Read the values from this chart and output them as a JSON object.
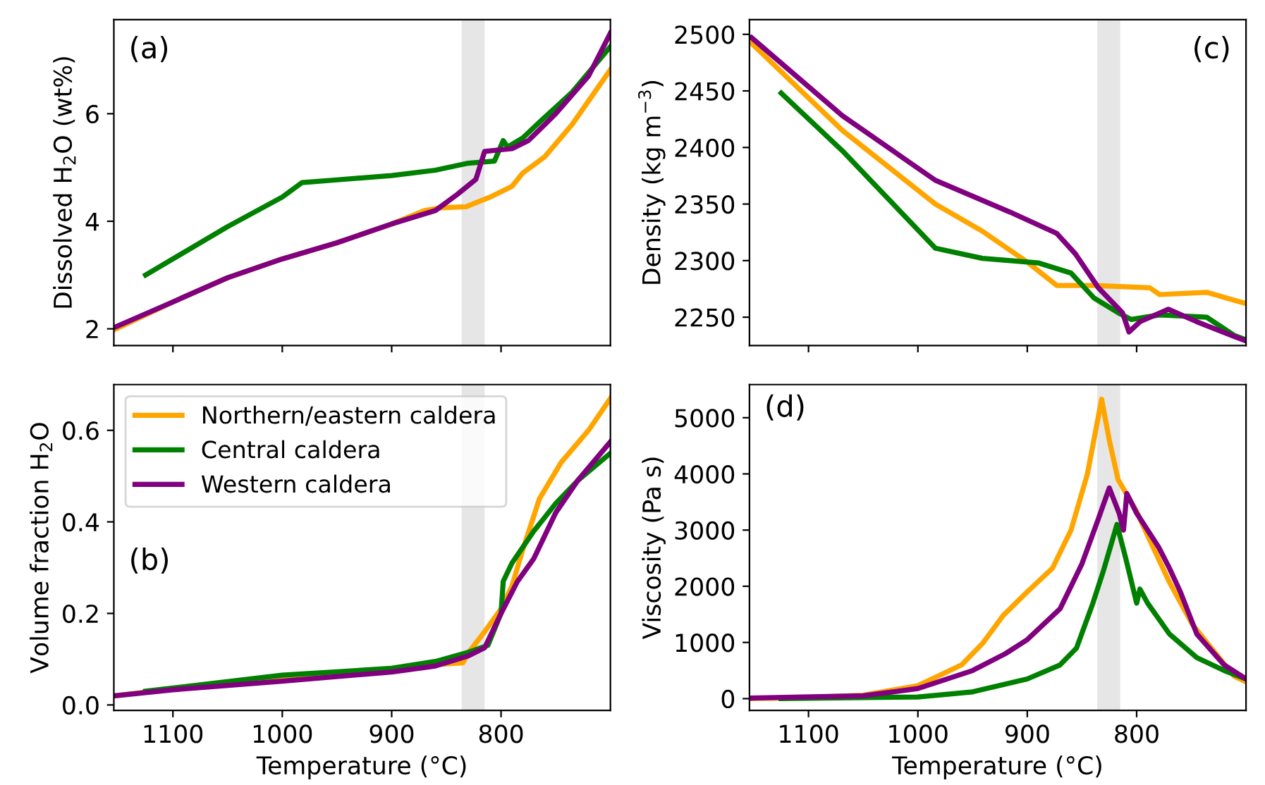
{
  "chart_data": [
    {
      "type": "line",
      "ylabel": "Dissolved H$_{2}$O (wt%)",
      "annotations": [
        "(a)"
      ],
      "xlim": [
        1154,
        700
      ],
      "xticks": [
        1100,
        1000,
        900,
        800
      ],
      "ylim": [
        1.69,
        7.75
      ],
      "yticks": [
        2,
        4,
        6
      ],
      "tick_labels": "y",
      "grid": false,
      "legend": false,
      "bands": [
        {
          "axis": "x",
          "from": 836,
          "to": 815,
          "color": "#e6e6e6"
        }
      ],
      "series": [
        {
          "color": "#ffa500",
          "x": [
            1153,
            1100,
            1050,
            1000,
            950,
            900,
            870,
            855,
            832,
            810,
            790,
            780,
            760,
            735,
            700
          ],
          "values": [
            1.99,
            2.5,
            2.95,
            3.3,
            3.6,
            3.95,
            4.2,
            4.25,
            4.27,
            4.45,
            4.65,
            4.9,
            5.2,
            5.8,
            6.82
          ]
        },
        {
          "color": "#008000",
          "x": [
            1125,
            1050,
            1000,
            982,
            950,
            900,
            860,
            830,
            806,
            798,
            794,
            780,
            764,
            735,
            700
          ],
          "values": [
            3.0,
            3.9,
            4.45,
            4.72,
            4.77,
            4.85,
            4.95,
            5.08,
            5.12,
            5.5,
            5.38,
            5.55,
            5.86,
            6.4,
            7.25
          ]
        },
        {
          "color": "#800080",
          "x": [
            1153,
            1100,
            1050,
            1000,
            950,
            900,
            860,
            840,
            823,
            815,
            805,
            790,
            775,
            750,
            720,
            700
          ],
          "values": [
            2.03,
            2.5,
            2.95,
            3.3,
            3.6,
            3.95,
            4.2,
            4.5,
            4.78,
            5.3,
            5.32,
            5.35,
            5.5,
            6.0,
            6.7,
            7.5
          ]
        }
      ]
    },
    {
      "type": "line",
      "ylabel": "Density (kg m$^{−3}$)",
      "annotations": [
        "(c)"
      ],
      "xlim": [
        1154,
        700
      ],
      "xticks": [
        1100,
        1000,
        900,
        800
      ],
      "ylim": [
        2225,
        2513
      ],
      "yticks": [
        2250,
        2300,
        2350,
        2400,
        2450,
        2500
      ],
      "tick_labels": "y",
      "grid": false,
      "legend": false,
      "bands": [
        {
          "axis": "x",
          "from": 836,
          "to": 815,
          "color": "#e6e6e6"
        }
      ],
      "series": [
        {
          "color": "#ffa500",
          "x": [
            1152,
            1069,
            984,
            941,
            899,
            873,
            839,
            788,
            779,
            736,
            711,
            700
          ],
          "values": [
            2492,
            2415,
            2350,
            2326,
            2298,
            2278,
            2278,
            2276,
            2270,
            2272,
            2265,
            2262
          ]
        },
        {
          "color": "#008000",
          "x": [
            1125,
            1069,
            984,
            941,
            890,
            860,
            839,
            817,
            805,
            779,
            736,
            711,
            700
          ],
          "values": [
            2448,
            2397,
            2311,
            2302,
            2298,
            2289,
            2267,
            2254,
            2248,
            2252,
            2250,
            2234,
            2230
          ]
        },
        {
          "color": "#800080",
          "x": [
            1152,
            1069,
            984,
            916,
            873,
            856,
            835,
            813,
            807,
            797,
            771,
            745,
            711,
            700
          ],
          "values": [
            2497,
            2428,
            2371,
            2343,
            2324,
            2306,
            2276,
            2254,
            2237,
            2246,
            2257,
            2246,
            2233,
            2229
          ]
        }
      ]
    },
    {
      "type": "line",
      "ylabel": "Volume fraction H$_{2}$O",
      "xlabel": "Temperature (°C)",
      "annotations": [
        "(b)"
      ],
      "xlim": [
        1154,
        700
      ],
      "xticks": [
        1100,
        1000,
        900,
        800
      ],
      "ylim": [
        -0.012,
        0.7
      ],
      "yticks": [
        {
          "value": 0,
          "label": "0.0"
        },
        0.2,
        0.4,
        0.6
      ],
      "grid": false,
      "legend": "top left",
      "bands": [
        {
          "axis": "x",
          "from": 836,
          "to": 815,
          "color": "#e6e6e6"
        }
      ],
      "series": [
        {
          "name": "Northern/eastern caldera",
          "color": "#ffa500",
          "x": [
            1153,
            1100,
            1000,
            900,
            860,
            835,
            828,
            815,
            800,
            790,
            780,
            765,
            745,
            720,
            700
          ],
          "values": [
            0.02,
            0.035,
            0.055,
            0.075,
            0.088,
            0.092,
            0.12,
            0.16,
            0.21,
            0.26,
            0.34,
            0.45,
            0.53,
            0.6,
            0.67
          ]
        },
        {
          "name": "Central caldera",
          "color": "#008000",
          "x": [
            1125,
            1000,
            900,
            860,
            830,
            812,
            800,
            798,
            790,
            770,
            750,
            730,
            700
          ],
          "values": [
            0.03,
            0.065,
            0.08,
            0.095,
            0.115,
            0.13,
            0.2,
            0.27,
            0.31,
            0.38,
            0.44,
            0.49,
            0.55
          ]
        },
        {
          "name": "Western caldera",
          "color": "#800080",
          "x": [
            1153,
            1100,
            1000,
            900,
            860,
            830,
            815,
            808,
            800,
            785,
            770,
            750,
            730,
            700
          ],
          "values": [
            0.02,
            0.033,
            0.052,
            0.072,
            0.085,
            0.107,
            0.125,
            0.16,
            0.2,
            0.27,
            0.32,
            0.42,
            0.49,
            0.575
          ]
        }
      ]
    },
    {
      "type": "line",
      "ylabel": "Viscosity (Pa s)",
      "xlabel": "Temperature (°C)",
      "annotations": [
        "(d)"
      ],
      "xlim": [
        1154,
        700
      ],
      "xticks": [
        1100,
        1000,
        900,
        800
      ],
      "ylim": [
        -210,
        5590
      ],
      "yticks": [
        0,
        1000,
        2000,
        3000,
        4000,
        5000
      ],
      "grid": false,
      "legend": false,
      "bands": [
        {
          "axis": "x",
          "from": 836,
          "to": 815,
          "color": "#e6e6e6"
        }
      ],
      "series": [
        {
          "color": "#ffa500",
          "x": [
            1153,
            1100,
            1050,
            1000,
            960,
            941,
            922,
            900,
            877,
            860,
            845,
            832,
            825,
            817,
            800,
            788,
            770,
            749,
            728,
            711,
            700
          ],
          "values": [
            0,
            20,
            60,
            230,
            600,
            980,
            1480,
            1900,
            2320,
            3000,
            4000,
            5330,
            4600,
            3900,
            3330,
            2820,
            2070,
            1320,
            810,
            400,
            300
          ]
        },
        {
          "color": "#008000",
          "x": [
            1125,
            1000,
            950,
            900,
            870,
            855,
            840,
            830,
            818,
            810,
            800,
            797,
            790,
            770,
            745,
            720,
            700
          ],
          "values": [
            0,
            30,
            120,
            350,
            600,
            900,
            1700,
            2300,
            3100,
            2500,
            1700,
            1950,
            1700,
            1150,
            730,
            500,
            350
          ]
        },
        {
          "color": "#800080",
          "x": [
            1153,
            1050,
            1000,
            950,
            920,
            900,
            870,
            850,
            835,
            825,
            816,
            812,
            809,
            800,
            780,
            770,
            760,
            745,
            720,
            700
          ],
          "values": [
            10,
            50,
            180,
            500,
            800,
            1050,
            1600,
            2400,
            3200,
            3750,
            3300,
            3000,
            3650,
            3300,
            2700,
            2320,
            1900,
            1150,
            600,
            350
          ]
        }
      ]
    }
  ]
}
